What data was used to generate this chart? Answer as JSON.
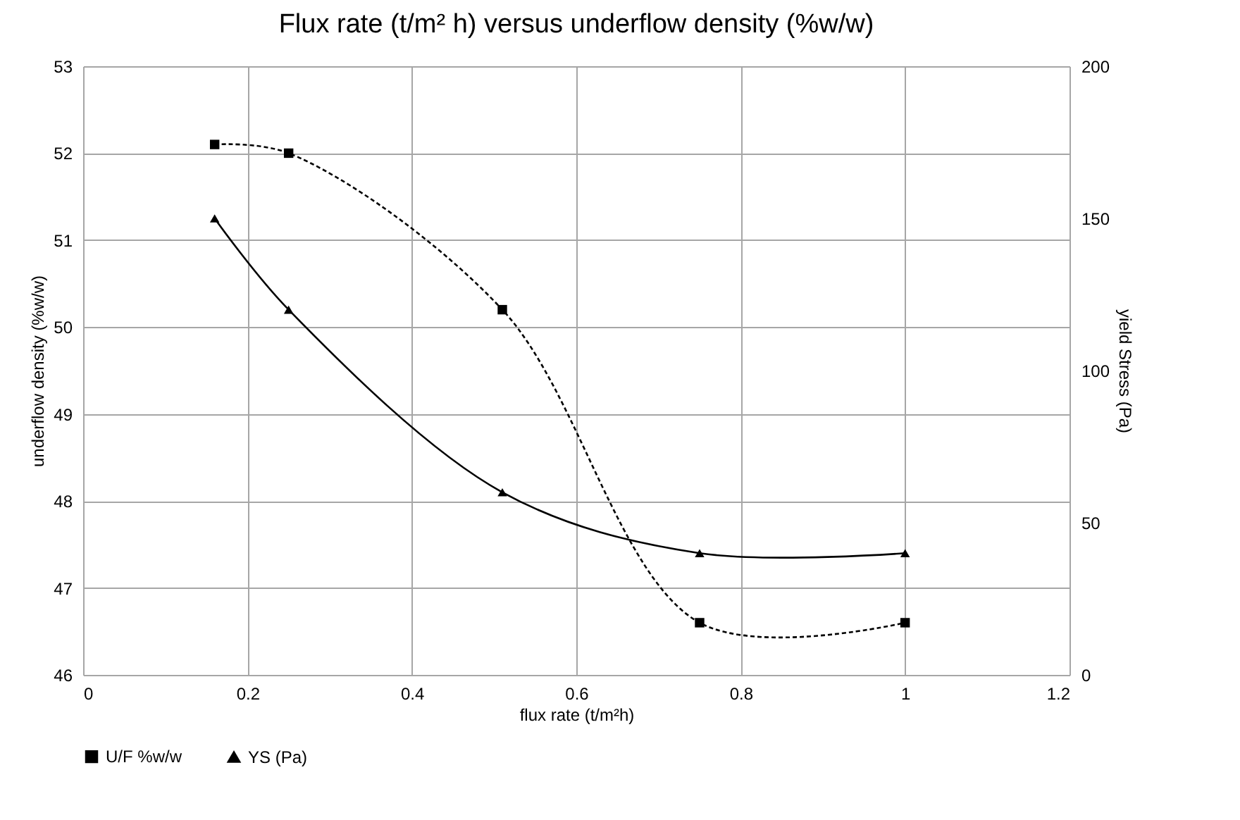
{
  "chart_data": {
    "type": "line",
    "title": "Flux rate (t/m² h) versus underflow density (%w/w)",
    "xlabel": "flux rate (t/m²h)",
    "ylabel": "underflow density (%w/w)",
    "y2label": "yield Stress (Pa)",
    "x": [
      0.16,
      0.25,
      0.51,
      0.75,
      1
    ],
    "series": [
      {
        "name": "U/F %w/w",
        "color": "#000000",
        "values": [
          52.1,
          52.0,
          50.2,
          46.6,
          46.6
        ],
        "marker": "square",
        "line_style": "dashed"
      },
      {
        "name": "YS (Pa)",
        "color": "#000000",
        "values": [
          150,
          120,
          60,
          40,
          40
        ],
        "marker": "triangle",
        "line_style": "solid",
        "axis": "y2"
      }
    ],
    "xlim": [
      0,
      1.2
    ],
    "xticks": [
      0,
      0.2,
      0.4,
      0.6,
      0.8,
      1,
      1.2
    ],
    "ylim": [
      46,
      53
    ],
    "yticks": [
      46,
      47,
      48,
      49,
      50,
      51,
      52,
      53
    ],
    "y2lim": [
      0,
      200
    ],
    "y2ticks": [
      0,
      50,
      100,
      150,
      200
    ],
    "grid": true,
    "legend": "bottom"
  }
}
